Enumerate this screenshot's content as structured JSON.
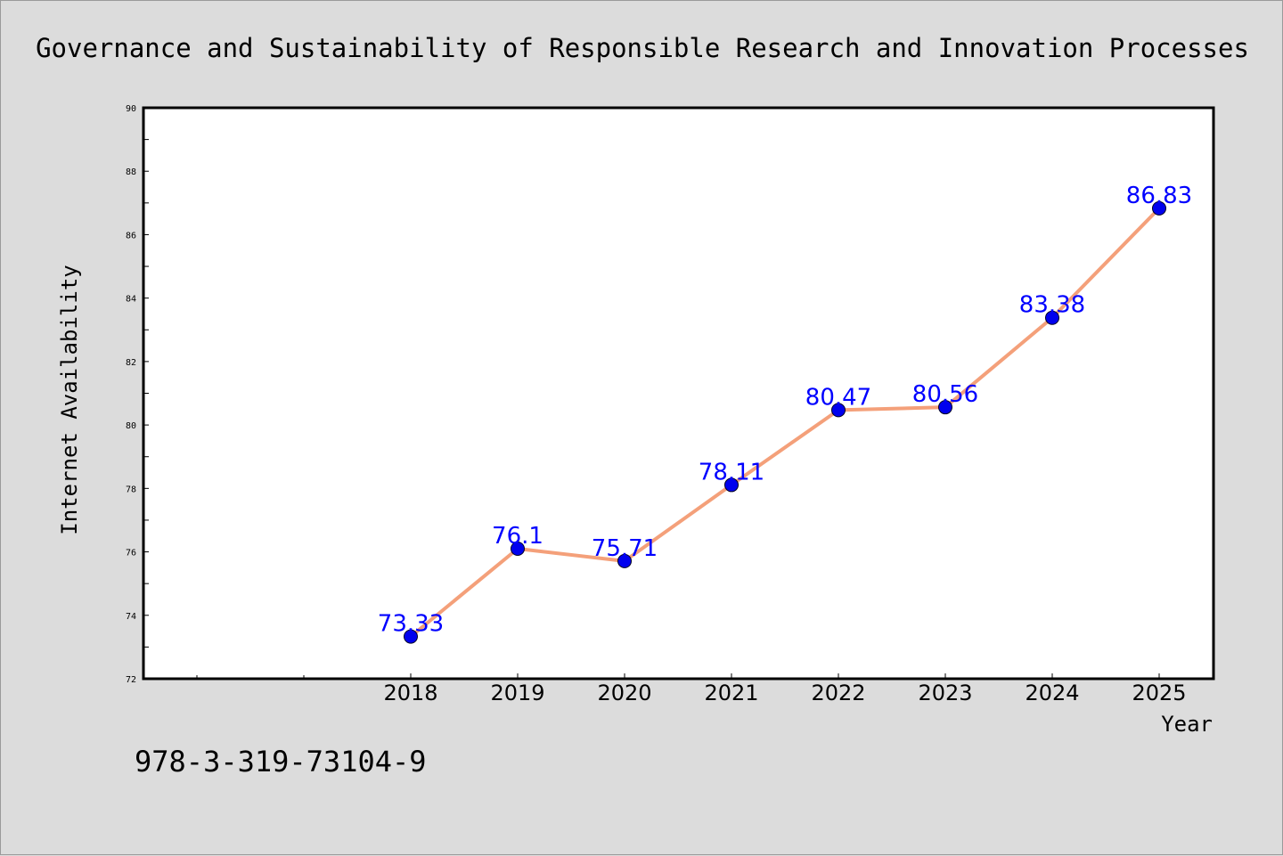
{
  "chart_data": {
    "type": "line",
    "title": "Governance and Sustainability of Responsible Research and Innovation Processes",
    "xlabel": "Year",
    "ylabel": "Internet Availability",
    "categories": [
      "2018",
      "2019",
      "2020",
      "2021",
      "2022",
      "2023",
      "2024",
      "2025"
    ],
    "series": [
      {
        "values": [
          73.33,
          76.1,
          75.71,
          78.11,
          80.47,
          80.56,
          83.38,
          86.83
        ],
        "labels": [
          "73.33",
          "76.1",
          "75.71",
          "78.11",
          "80.47",
          "80.56",
          "83.38",
          "86.83"
        ]
      }
    ],
    "ylim": [
      72,
      90
    ],
    "yticks": [
      "72",
      "74",
      "76",
      "78",
      "80",
      "82",
      "84",
      "86",
      "88",
      "90"
    ],
    "grid": false,
    "legend": "none",
    "colors": {
      "line": "#f4a07a",
      "marker": "#0000ee",
      "data_label": "#0000ff",
      "background": "#dcdcdc",
      "plot_area": "#ffffff"
    }
  },
  "footer": {
    "isbn": "978-3-319-73104-9"
  }
}
